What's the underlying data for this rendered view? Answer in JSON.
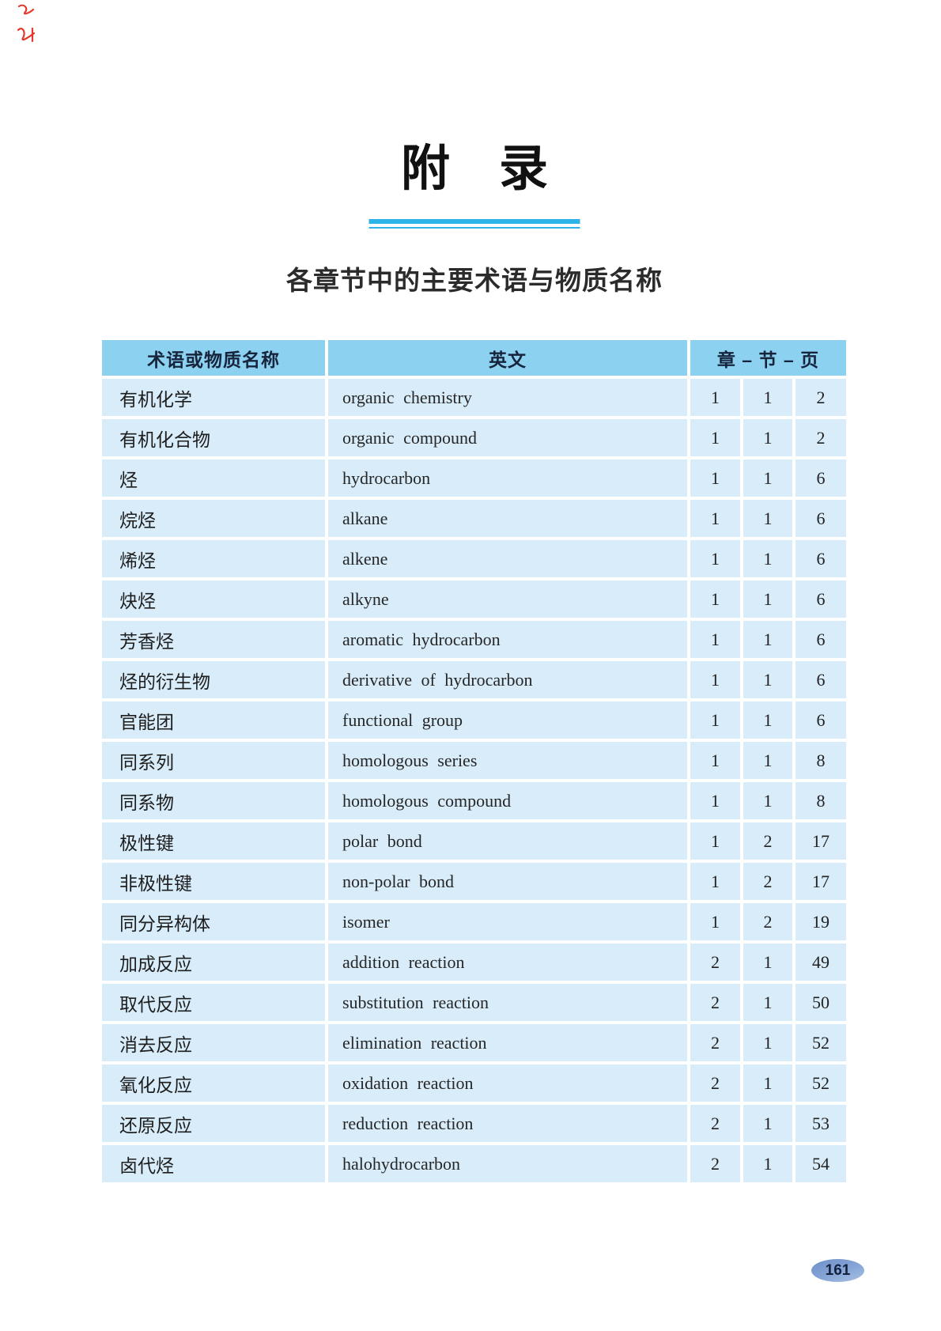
{
  "header": {
    "title": "附　录",
    "subtitle": "各章节中的主要术语与物质名称"
  },
  "table": {
    "headers": {
      "term": "术语或物质名称",
      "english": "英文",
      "chapter_section_page": "章 – 节 – 页"
    },
    "rows": [
      {
        "term": "有机化学",
        "english": "organic chemistry",
        "chapter": "1",
        "section": "1",
        "page": "2"
      },
      {
        "term": "有机化合物",
        "english": "organic compound",
        "chapter": "1",
        "section": "1",
        "page": "2"
      },
      {
        "term": "烃",
        "english": "hydrocarbon",
        "chapter": "1",
        "section": "1",
        "page": "6"
      },
      {
        "term": "烷烃",
        "english": "alkane",
        "chapter": "1",
        "section": "1",
        "page": "6"
      },
      {
        "term": "烯烃",
        "english": "alkene",
        "chapter": "1",
        "section": "1",
        "page": "6"
      },
      {
        "term": "炔烃",
        "english": "alkyne",
        "chapter": "1",
        "section": "1",
        "page": "6"
      },
      {
        "term": "芳香烃",
        "english": "aromatic hydrocarbon",
        "chapter": "1",
        "section": "1",
        "page": "6"
      },
      {
        "term": "烃的衍生物",
        "english": "derivative of hydrocarbon",
        "chapter": "1",
        "section": "1",
        "page": "6"
      },
      {
        "term": "官能团",
        "english": "functional group",
        "chapter": "1",
        "section": "1",
        "page": "6"
      },
      {
        "term": "同系列",
        "english": "homologous series",
        "chapter": "1",
        "section": "1",
        "page": "8"
      },
      {
        "term": "同系物",
        "english": "homologous compound",
        "chapter": "1",
        "section": "1",
        "page": "8"
      },
      {
        "term": "极性键",
        "english": "polar bond",
        "chapter": "1",
        "section": "2",
        "page": "17"
      },
      {
        "term": "非极性键",
        "english": "non-polar bond",
        "chapter": "1",
        "section": "2",
        "page": "17"
      },
      {
        "term": "同分异构体",
        "english": "isomer",
        "chapter": "1",
        "section": "2",
        "page": "19"
      },
      {
        "term": "加成反应",
        "english": "addition reaction",
        "chapter": "2",
        "section": "1",
        "page": "49"
      },
      {
        "term": "取代反应",
        "english": "substitution reaction",
        "chapter": "2",
        "section": "1",
        "page": "50"
      },
      {
        "term": "消去反应",
        "english": "elimination reaction",
        "chapter": "2",
        "section": "1",
        "page": "52"
      },
      {
        "term": "氧化反应",
        "english": "oxidation reaction",
        "chapter": "2",
        "section": "1",
        "page": "52"
      },
      {
        "term": "还原反应",
        "english": "reduction reaction",
        "chapter": "2",
        "section": "1",
        "page": "53"
      },
      {
        "term": "卤代烃",
        "english": "halohydrocarbon",
        "chapter": "2",
        "section": "1",
        "page": "54"
      }
    ]
  },
  "footer": {
    "page_number": "161"
  },
  "colors": {
    "table_header_bg": "#8DD1F0",
    "table_row_bg": "#D8ECF9",
    "title_rule": "#2CB4E8",
    "page_pill_blue": "#7B9BD0",
    "corner_mark_red": "#DF3A2C"
  }
}
